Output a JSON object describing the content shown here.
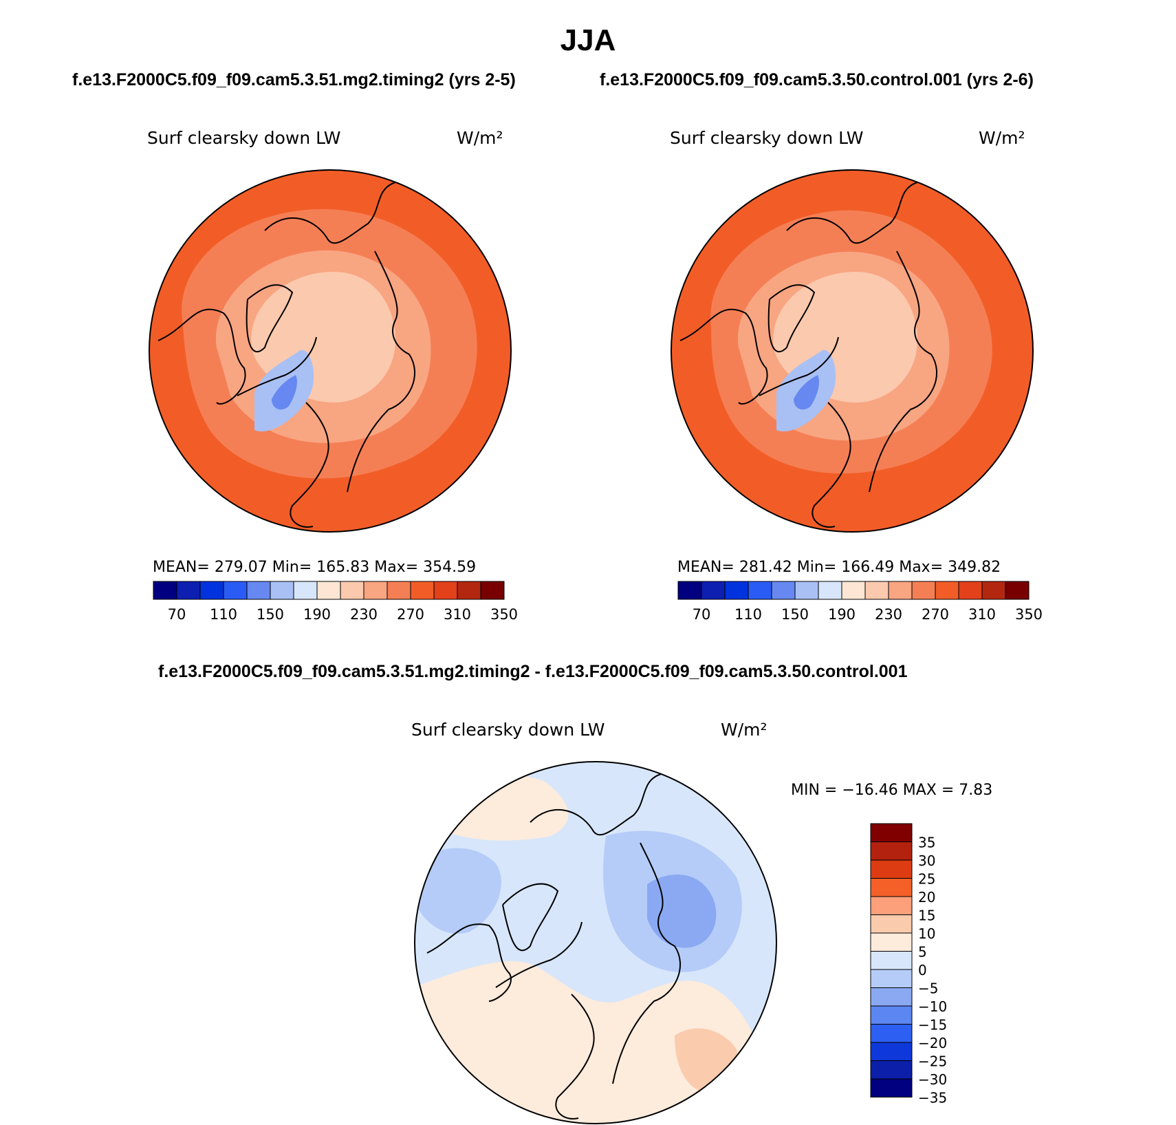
{
  "header": {
    "title": "JJA",
    "case_test": "f.e13.F2000C5.f09_f09.cam5.3.51.mg2.timing2 (yrs 2-5)",
    "case_control": "f.e13.F2000C5.f09_f09.cam5.3.50.control.001 (yrs 2-6)",
    "diff_title": "f.e13.F2000C5.f09_f09.cam5.3.51.mg2.timing2 - f.e13.F2000C5.f09_f09.cam5.3.50.control.001"
  },
  "panels": {
    "test": {
      "variable": "Surf clearsky down LW",
      "units": "W/m²",
      "stats_text": "MEAN= 279.07   Min= 165.83   Max= 354.59",
      "mean": 279.07,
      "min": 165.83,
      "max": 354.59
    },
    "control": {
      "variable": "Surf clearsky down LW",
      "units": "W/m²",
      "stats_text": "MEAN= 281.42   Min= 166.49   Max= 349.82",
      "mean": 281.42,
      "min": 166.49,
      "max": 349.82
    },
    "diff": {
      "variable": "Surf clearsky down LW",
      "units": "W/m²",
      "stats_text": "MIN = −16.46 MAX =    7.83",
      "min": -16.46,
      "max": 7.83
    }
  },
  "colorbars": {
    "abs": {
      "colors": [
        "#000080",
        "#0d1fb0",
        "#0033dd",
        "#2a5cf5",
        "#6688f0",
        "#a9c0f5",
        "#d7e6fb",
        "#fde6d3",
        "#fbc9ad",
        "#f8a582",
        "#f57f55",
        "#f25d27",
        "#e2411a",
        "#b32710",
        "#780000"
      ],
      "tick_labels": [
        "70",
        "110",
        "150",
        "190",
        "230",
        "270",
        "310",
        "350"
      ]
    },
    "diff": {
      "colors_top_to_bottom": [
        "#800000",
        "#b3220e",
        "#dd3c12",
        "#f46027",
        "#fba07b",
        "#fbcbae",
        "#fdebdc",
        "#d7e6fb",
        "#b5ccf8",
        "#8aa9f2",
        "#5c86f1",
        "#2d60f2",
        "#0e38d9",
        "#0b1fa8",
        "#000080"
      ],
      "tick_labels": [
        "35",
        "30",
        "25",
        "20",
        "15",
        "10",
        "5",
        "0",
        "−5",
        "−10",
        "−15",
        "−20",
        "−25",
        "−30",
        "−35"
      ]
    }
  },
  "map_fields": {
    "test": [
      "#f25d27",
      "#f57f55",
      "#f8a582",
      "#fbc9ad",
      "#6688f0",
      "#a9c0f5"
    ],
    "control": [
      "#f25d27",
      "#f57f55",
      "#f8a582",
      "#fbc9ad",
      "#6688f0",
      "#a9c0f5"
    ],
    "diff": [
      "#d7e6fb",
      "#fdebdc",
      "#b5ccf8",
      "#8aa9f2",
      "#fbcbae"
    ]
  }
}
